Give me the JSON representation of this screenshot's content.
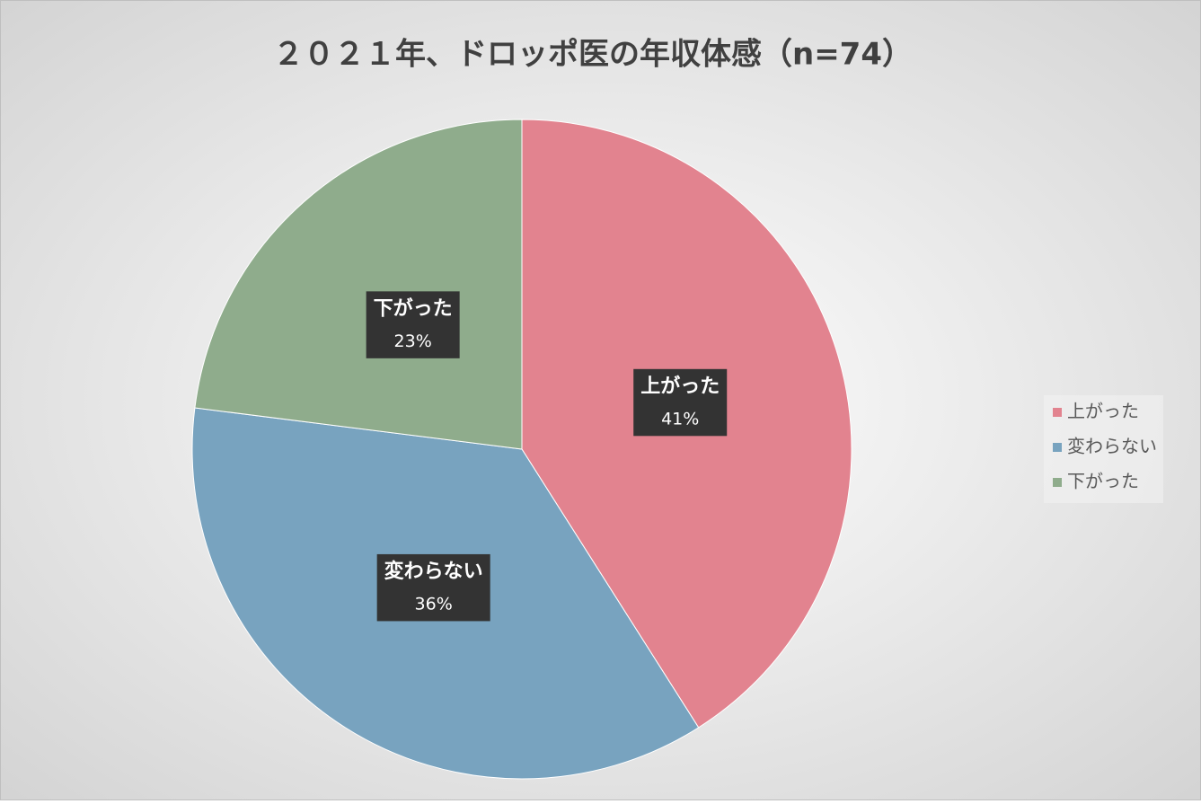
{
  "chart_data": {
    "type": "pie",
    "title": "２０２１年、ドロッポ医の年収体感（n=74）",
    "categories": [
      "上がった",
      "変わらない",
      "下がった"
    ],
    "values": [
      41,
      36,
      23
    ],
    "value_labels": [
      "41%",
      "36%",
      "23%"
    ],
    "colors": [
      "#e2838f",
      "#78a3bf",
      "#8fac8c"
    ],
    "legend": "right"
  }
}
